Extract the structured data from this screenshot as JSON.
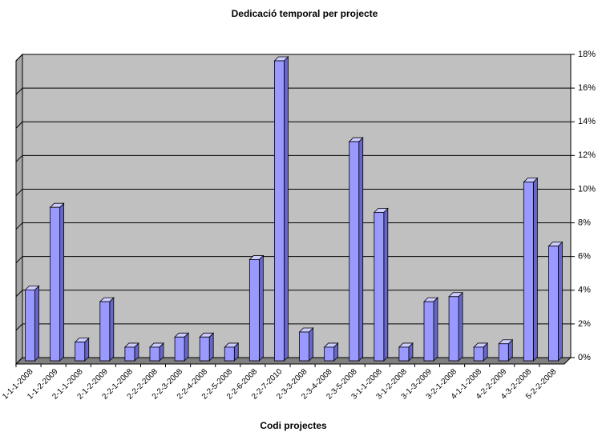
{
  "chart_data": {
    "type": "bar3d",
    "title": "Dedicació temporal per projecte",
    "x_label": "Codi projectes",
    "categories": [
      "1-1-1-2008",
      "1-1-2-2009",
      "2-1-1-2008",
      "2-1-2-2009",
      "2-2-1-2008",
      "2-2-2-2008",
      "2-2-3-2008",
      "2-2-4-2008",
      "2-2-5-2008",
      "2-2-6-2008",
      "2-2-7-2010",
      "2-3-3-2008",
      "2-3-4-2008",
      "2-3-5-2008",
      "3-1-1-2008",
      "3-1-2-2008",
      "3-1-3-2009",
      "3-2-1-2008",
      "4-1-1-2008",
      "4-2-2-2009",
      "4-3-2-2008",
      "5-2-2-2008"
    ],
    "values": [
      4.4,
      9.3,
      1.3,
      3.7,
      1.0,
      1.0,
      1.6,
      1.6,
      1.0,
      6.2,
      18.0,
      1.9,
      1.0,
      13.2,
      9.0,
      1.0,
      3.7,
      4.0,
      1.0,
      1.2,
      10.8,
      7.0
    ],
    "color": "#9999ff",
    "ylim": [
      0,
      18
    ],
    "yticks": [
      {
        "value": 0,
        "label": "0%"
      },
      {
        "value": 2,
        "label": "2%"
      },
      {
        "value": 4,
        "label": "4%"
      },
      {
        "value": 6,
        "label": "6%"
      },
      {
        "value": 8,
        "label": "8%"
      },
      {
        "value": 10,
        "label": "10%"
      },
      {
        "value": 12,
        "label": "12%"
      },
      {
        "value": 14,
        "label": "14%"
      },
      {
        "value": 16,
        "label": "16%"
      },
      {
        "value": 18,
        "label": "18%"
      }
    ],
    "grid": true
  }
}
